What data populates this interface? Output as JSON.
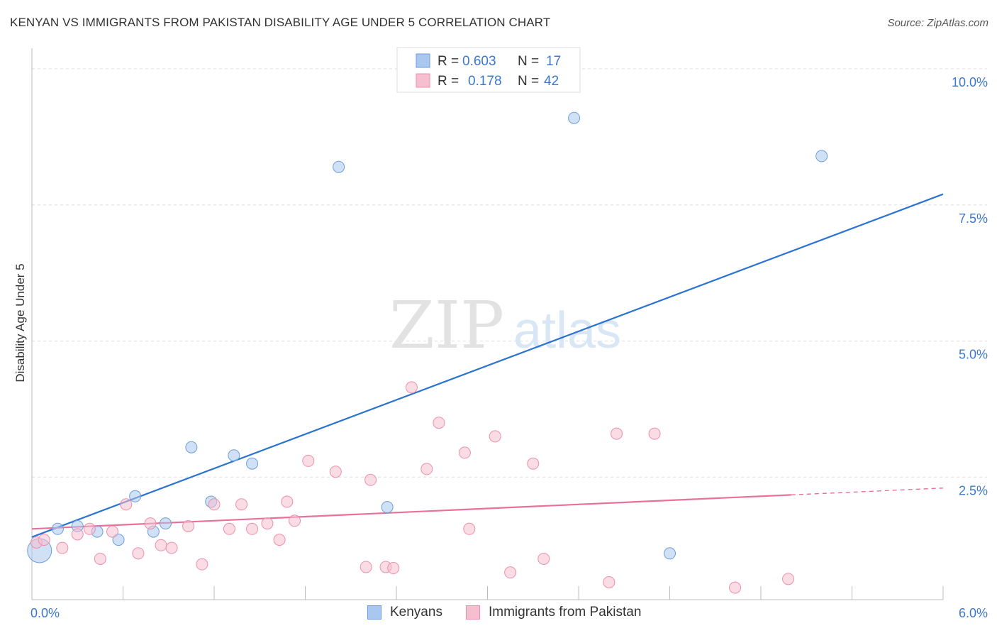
{
  "title": "KENYAN VS IMMIGRANTS FROM PAKISTAN DISABILITY AGE UNDER 5 CORRELATION CHART",
  "source": "Source: ZipAtlas.com",
  "watermark": {
    "zip": "ZIP",
    "atlas": "atlas"
  },
  "colors": {
    "blue_fill": "#aac8ef",
    "blue_stroke": "#6d9edb",
    "blue_line": "#2a74d0",
    "pink_fill": "#f6bfd0",
    "pink_stroke": "#ec8fab",
    "pink_line": "#e8709a",
    "tick_label": "#3b78d0",
    "grid": "#dddddd"
  },
  "legend_top": {
    "rows": [
      {
        "r_label": "R =",
        "r_value": "0.603",
        "n_label": "N =",
        "n_value": "17",
        "series": "blue"
      },
      {
        "r_label": "R =",
        "r_value": "0.178",
        "n_label": "N =",
        "n_value": "42",
        "series": "pink"
      }
    ]
  },
  "legend_bottom": {
    "items": [
      "Kenyans",
      "Immigrants from Pakistan"
    ]
  },
  "chart_data": {
    "type": "scatter",
    "title": "KENYAN VS IMMIGRANTS FROM PAKISTAN DISABILITY AGE UNDER 5 CORRELATION CHART",
    "xlabel": "",
    "ylabel": "Disability Age Under 5",
    "xlim": [
      0,
      6.0
    ],
    "ylim": [
      0,
      10.0
    ],
    "x_tick_labels": [
      {
        "value": 0,
        "label": "0.0%"
      },
      {
        "value": 6.0,
        "label": "6.0%"
      }
    ],
    "y_ticks": [
      {
        "value": 2.5,
        "label": "2.5%"
      },
      {
        "value": 5.0,
        "label": "5.0%"
      },
      {
        "value": 7.5,
        "label": "7.5%"
      },
      {
        "value": 10.0,
        "label": "10.0%"
      }
    ],
    "series": [
      {
        "name": "Kenyans",
        "color": "blue",
        "trend": {
          "x0": 0,
          "y0": 1.15,
          "x1": 6.0,
          "y1": 7.45,
          "dashed_from": null
        },
        "points": [
          {
            "x": 0.05,
            "y": 0.9,
            "size": "large"
          },
          {
            "x": 0.17,
            "y": 1.3
          },
          {
            "x": 0.3,
            "y": 1.35
          },
          {
            "x": 0.43,
            "y": 1.25
          },
          {
            "x": 0.57,
            "y": 1.1
          },
          {
            "x": 0.68,
            "y": 1.9
          },
          {
            "x": 0.8,
            "y": 1.25
          },
          {
            "x": 0.88,
            "y": 1.4
          },
          {
            "x": 1.05,
            "y": 2.8
          },
          {
            "x": 1.18,
            "y": 1.8
          },
          {
            "x": 1.33,
            "y": 2.65
          },
          {
            "x": 1.45,
            "y": 2.5
          },
          {
            "x": 2.02,
            "y": 7.95
          },
          {
            "x": 2.34,
            "y": 1.7
          },
          {
            "x": 3.57,
            "y": 8.85
          },
          {
            "x": 4.2,
            "y": 0.85
          },
          {
            "x": 5.2,
            "y": 8.15
          }
        ]
      },
      {
        "name": "Immigrants from Pakistan",
        "color": "pink",
        "trend": {
          "x0": 0,
          "y0": 1.3,
          "x1": 6.0,
          "y1": 2.05,
          "dashed_from": 5.0
        },
        "points": [
          {
            "x": 0.03,
            "y": 1.05
          },
          {
            "x": 0.08,
            "y": 1.1
          },
          {
            "x": 0.2,
            "y": 0.95
          },
          {
            "x": 0.3,
            "y": 1.2
          },
          {
            "x": 0.38,
            "y": 1.3
          },
          {
            "x": 0.45,
            "y": 0.75
          },
          {
            "x": 0.53,
            "y": 1.25
          },
          {
            "x": 0.62,
            "y": 1.75
          },
          {
            "x": 0.7,
            "y": 0.85
          },
          {
            "x": 0.78,
            "y": 1.4
          },
          {
            "x": 0.85,
            "y": 1.0
          },
          {
            "x": 0.92,
            "y": 0.95
          },
          {
            "x": 1.03,
            "y": 1.35
          },
          {
            "x": 1.12,
            "y": 0.65
          },
          {
            "x": 1.2,
            "y": 1.75
          },
          {
            "x": 1.3,
            "y": 1.3
          },
          {
            "x": 1.38,
            "y": 1.75
          },
          {
            "x": 1.45,
            "y": 1.3
          },
          {
            "x": 1.55,
            "y": 1.4
          },
          {
            "x": 1.63,
            "y": 1.1
          },
          {
            "x": 1.68,
            "y": 1.8
          },
          {
            "x": 1.73,
            "y": 1.45
          },
          {
            "x": 1.82,
            "y": 2.55
          },
          {
            "x": 2.0,
            "y": 2.35
          },
          {
            "x": 2.2,
            "y": 0.6
          },
          {
            "x": 2.23,
            "y": 2.2
          },
          {
            "x": 2.33,
            "y": 0.6
          },
          {
            "x": 2.38,
            "y": 0.58
          },
          {
            "x": 2.5,
            "y": 3.9
          },
          {
            "x": 2.6,
            "y": 2.4
          },
          {
            "x": 2.68,
            "y": 3.25
          },
          {
            "x": 2.85,
            "y": 2.7
          },
          {
            "x": 2.88,
            "y": 1.3
          },
          {
            "x": 3.05,
            "y": 3.0
          },
          {
            "x": 3.15,
            "y": 0.5
          },
          {
            "x": 3.3,
            "y": 2.5
          },
          {
            "x": 3.37,
            "y": 0.75
          },
          {
            "x": 3.8,
            "y": 0.32
          },
          {
            "x": 3.85,
            "y": 3.05
          },
          {
            "x": 4.1,
            "y": 3.05
          },
          {
            "x": 4.63,
            "y": 0.22
          },
          {
            "x": 4.98,
            "y": 0.38
          }
        ]
      }
    ]
  }
}
